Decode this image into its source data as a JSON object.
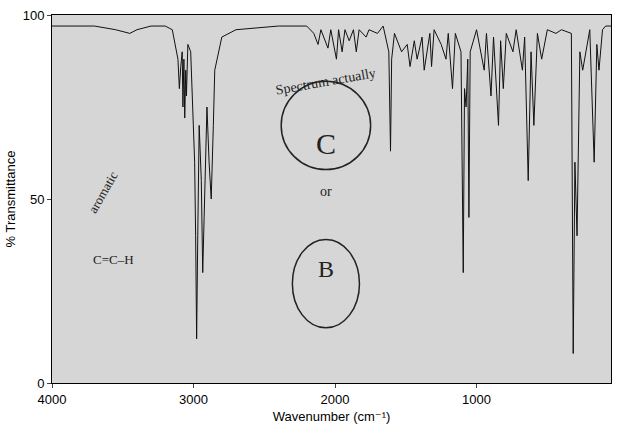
{
  "chart_data": {
    "type": "line",
    "x_label": "Wavenumber (cm⁻¹)",
    "y_label": "% Transmittance",
    "xlim": [
      4000,
      50
    ],
    "xticks": [
      4000,
      3000,
      2000,
      1000
    ],
    "ylim": [
      0,
      100
    ],
    "yticks": [
      0,
      50,
      100
    ],
    "grid": false,
    "color": "#111111",
    "x": [
      4000,
      3700,
      3550,
      3450,
      3400,
      3300,
      3200,
      3150,
      3110,
      3100,
      3090,
      3080,
      3075,
      3068,
      3062,
      3055,
      3050,
      3040,
      3020,
      2992,
      2985,
      2978,
      2970,
      2960,
      2945,
      2935,
      2925,
      2905,
      2890,
      2875,
      2860,
      2850,
      2800,
      2700,
      2400,
      2200,
      2150,
      2120,
      2100,
      2050,
      2030,
      1990,
      1975,
      1950,
      1930,
      1900,
      1870,
      1850,
      1830,
      1780,
      1760,
      1700,
      1660,
      1620,
      1608,
      1600,
      1580,
      1530,
      1490,
      1470,
      1440,
      1420,
      1385,
      1370,
      1330,
      1318,
      1300,
      1250,
      1216,
      1200,
      1170,
      1150,
      1110,
      1094,
      1085,
      1074,
      1062,
      1054,
      1045,
      1000,
      946,
      930,
      898,
      880,
      845,
      830,
      811,
      790,
      743,
      720,
      676,
      660,
      635,
      615,
      595,
      570,
      540,
      500,
      439,
      400,
      330,
      317,
      305,
      290,
      270,
      250,
      200,
      169,
      150,
      135,
      110,
      88,
      50
    ],
    "values": [
      97,
      97,
      96,
      95,
      96,
      97,
      97,
      96,
      88,
      80,
      86,
      90,
      75,
      88,
      72,
      85,
      78,
      92,
      90,
      60,
      40,
      12,
      40,
      70,
      55,
      30,
      45,
      75,
      60,
      50,
      70,
      85,
      94,
      96,
      97,
      97,
      95,
      92,
      96,
      91,
      96,
      88,
      96,
      90,
      96,
      93,
      96,
      90,
      96,
      94,
      96,
      95,
      97,
      90,
      63,
      88,
      95,
      90,
      92,
      86,
      93,
      88,
      94,
      85,
      95,
      86,
      96,
      92,
      88,
      95,
      80,
      95,
      90,
      30,
      80,
      75,
      88,
      45,
      90,
      96,
      85,
      95,
      78,
      94,
      70,
      93,
      80,
      95,
      90,
      96,
      85,
      94,
      55,
      90,
      70,
      95,
      88,
      96,
      95,
      96,
      95,
      8,
      60,
      40,
      90,
      85,
      96,
      60,
      92,
      85,
      96,
      97,
      97
    ],
    "annotations": [
      "Spectrum actually",
      "C",
      "or",
      "B",
      "aromatic",
      "C=C–H"
    ]
  }
}
